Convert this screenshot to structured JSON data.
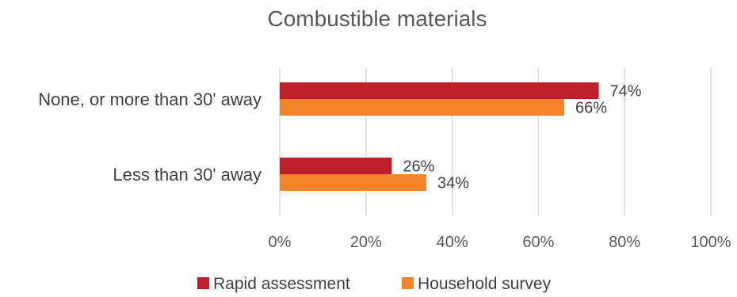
{
  "chart_data": {
    "type": "bar",
    "orientation": "horizontal",
    "title": "Combustible materials",
    "categories": [
      "None, or more than 30' away",
      "Less than 30' away"
    ],
    "series": [
      {
        "name": "Rapid assessment",
        "values": [
          74,
          26
        ],
        "labels": [
          "74%",
          "26%"
        ],
        "color": "#c0202e"
      },
      {
        "name": "Household survey",
        "values": [
          66,
          34
        ],
        "labels": [
          "66%",
          "34%"
        ],
        "color": "#f0852b"
      }
    ],
    "xlim": [
      0,
      100
    ],
    "x_ticks": [
      0,
      20,
      40,
      60,
      80,
      100
    ],
    "x_tick_labels": [
      "0%",
      "20%",
      "40%",
      "60%",
      "80%",
      "100%"
    ],
    "grid": true,
    "legend": "bottom"
  }
}
